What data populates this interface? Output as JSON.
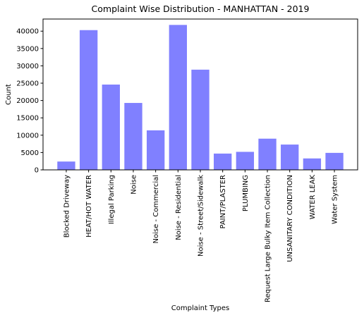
{
  "chart_data": {
    "type": "bar",
    "title": "Complaint Wise Distribution - MANHATTAN - 2019",
    "xlabel": "Complaint Types",
    "ylabel": "Count",
    "ylim": [
      0,
      43500
    ],
    "yticks": [
      0,
      5000,
      10000,
      15000,
      20000,
      25000,
      30000,
      35000,
      40000
    ],
    "grid": false,
    "bar_color": "#8080ff",
    "categories": [
      "Blocked Driveway",
      "HEAT/HOT WATER",
      "Illegal Parking",
      "Noise",
      "Noise - Commercial",
      "Noise - Residential",
      "Noise - Street/Sidewalk",
      "PAINT/PLASTER",
      "PLUMBING",
      "Request Large Bulky Item Collection",
      "UNSANITARY CONDITION",
      "WATER LEAK",
      "Water System"
    ],
    "values": [
      2400,
      40300,
      24600,
      19300,
      11400,
      41800,
      28900,
      4700,
      5200,
      9000,
      7300,
      3300,
      4900
    ]
  }
}
